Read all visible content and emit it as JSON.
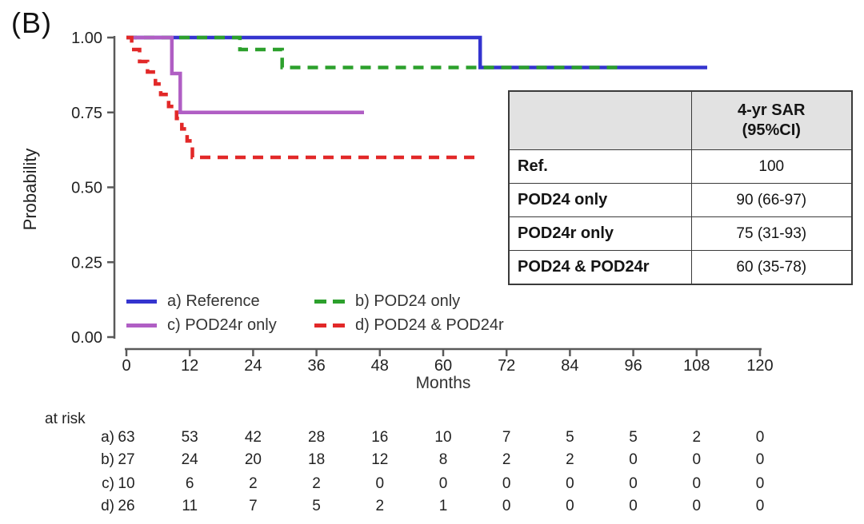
{
  "panel_label": "(B)",
  "chart_data": {
    "type": "line",
    "subtype": "kaplan-meier-step",
    "xlabel": "Months",
    "ylabel": "Probability",
    "xlim": [
      0,
      120
    ],
    "ylim": [
      0.0,
      1.0
    ],
    "x_ticks": [
      0,
      12,
      24,
      36,
      48,
      60,
      72,
      84,
      96,
      108,
      120
    ],
    "y_ticks": [
      {
        "v": 0.0,
        "label": "0.00"
      },
      {
        "v": 0.25,
        "label": "0.25"
      },
      {
        "v": 0.5,
        "label": "0.50"
      },
      {
        "v": 0.75,
        "label": "0.75"
      },
      {
        "v": 1.0,
        "label": "1.00"
      }
    ],
    "grid": false,
    "legend_position": "inside-bottom-left",
    "series": [
      {
        "name": "a) Reference",
        "color": "#3434cf",
        "style": "solid",
        "points": [
          [
            0,
            1.0
          ],
          [
            67,
            1.0
          ],
          [
            67,
            0.9
          ],
          [
            110,
            0.9
          ]
        ]
      },
      {
        "name": "b) POD24 only",
        "color": "#2ca02c",
        "style": "dashed",
        "points": [
          [
            0,
            1.0
          ],
          [
            21.5,
            1.0
          ],
          [
            21.5,
            0.96
          ],
          [
            29.5,
            0.96
          ],
          [
            29.5,
            0.9
          ],
          [
            93,
            0.9
          ]
        ]
      },
      {
        "name": "c) POD24r only",
        "color": "#b05ec4",
        "style": "solid",
        "points": [
          [
            0,
            1.0
          ],
          [
            8.6,
            1.0
          ],
          [
            8.6,
            0.88
          ],
          [
            10.2,
            0.88
          ],
          [
            10.2,
            0.75
          ],
          [
            45,
            0.75
          ]
        ]
      },
      {
        "name": "d) POD24 & POD24r",
        "color": "#e22828",
        "style": "dashed",
        "points": [
          [
            0,
            1.0
          ],
          [
            1,
            1.0
          ],
          [
            1,
            0.96
          ],
          [
            2.5,
            0.96
          ],
          [
            2.5,
            0.92
          ],
          [
            4,
            0.92
          ],
          [
            4,
            0.885
          ],
          [
            5.5,
            0.885
          ],
          [
            5.5,
            0.845
          ],
          [
            6.5,
            0.845
          ],
          [
            6.5,
            0.81
          ],
          [
            8,
            0.81
          ],
          [
            8,
            0.77
          ],
          [
            9.5,
            0.77
          ],
          [
            9.5,
            0.73
          ],
          [
            10.5,
            0.73
          ],
          [
            10.5,
            0.695
          ],
          [
            11.5,
            0.695
          ],
          [
            11.5,
            0.655
          ],
          [
            12.5,
            0.655
          ],
          [
            12.5,
            0.6
          ],
          [
            66,
            0.6
          ]
        ]
      }
    ]
  },
  "legend": {
    "items": [
      {
        "label": "a) Reference",
        "color": "#3434cf",
        "style": "solid"
      },
      {
        "label": "b) POD24 only",
        "color": "#2ca02c",
        "style": "dashed"
      },
      {
        "label": "c) POD24r only",
        "color": "#b05ec4",
        "style": "solid"
      },
      {
        "label": "d) POD24 & POD24r",
        "color": "#e22828",
        "style": "dashed"
      }
    ]
  },
  "summary_table": {
    "header": {
      "line1": "4-yr SAR",
      "line2": "(95%CI)"
    },
    "rows": [
      {
        "label": "Ref.",
        "value": "100"
      },
      {
        "label": "POD24 only",
        "value": "90 (66-97)"
      },
      {
        "label": "POD24r only",
        "value": "75 (31-93)"
      },
      {
        "label": "POD24 & POD24r",
        "value": "60 (35-78)"
      }
    ]
  },
  "at_risk": {
    "label": "at risk",
    "months": [
      0,
      12,
      24,
      36,
      48,
      60,
      72,
      84,
      96,
      108,
      120
    ],
    "rows": [
      {
        "label": "a)",
        "values": [
          63,
          53,
          42,
          28,
          16,
          10,
          7,
          5,
          5,
          2,
          0
        ]
      },
      {
        "label": "b)",
        "values": [
          27,
          24,
          20,
          18,
          12,
          8,
          2,
          2,
          0,
          0,
          0
        ]
      },
      {
        "label": "c)",
        "values": [
          10,
          6,
          2,
          2,
          0,
          0,
          0,
          0,
          0,
          0,
          0
        ]
      },
      {
        "label": "d)",
        "values": [
          26,
          11,
          7,
          5,
          2,
          1,
          0,
          0,
          0,
          0,
          0
        ]
      }
    ]
  },
  "colors": {
    "axis": "#5a5a5a",
    "text": "#222222",
    "table_header_bg": "#e2e2e2",
    "table_border": "#3a3a3a"
  }
}
